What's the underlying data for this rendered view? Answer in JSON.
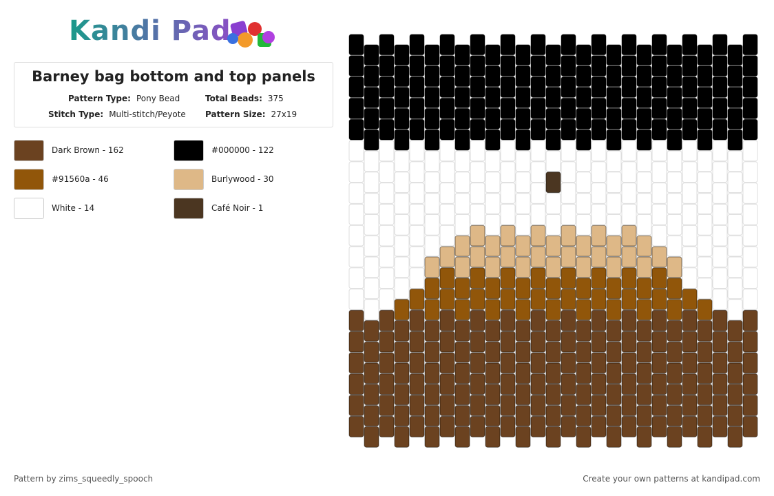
{
  "logo": "Kandi Pad",
  "header": {
    "title": "Barney bag bottom and top panels",
    "details": [
      {
        "label": "Pattern Type:",
        "value": "Pony Bead"
      },
      {
        "label": "Total Beads:",
        "value": "375"
      },
      {
        "label": "Stitch Type:",
        "value": "Multi-stitch/Peyote"
      },
      {
        "label": "Pattern Size:",
        "value": "27x19"
      }
    ]
  },
  "legend": [
    {
      "color": "#6b4220",
      "label": "Dark Brown - 162"
    },
    {
      "color": "#000000",
      "label": "#000000 - 122"
    },
    {
      "color": "#91560a",
      "label": "#91560a - 46"
    },
    {
      "color": "#deb887",
      "label": "Burlywood - 30"
    },
    {
      "color": "#ffffff",
      "label": "White - 14"
    },
    {
      "color": "#4b3621",
      "label": "Café Noir - 1"
    }
  ],
  "footer": {
    "left": "Pattern by zims_squeedly_spooch",
    "right": "Create your own patterns at kandipad.com"
  }
}
